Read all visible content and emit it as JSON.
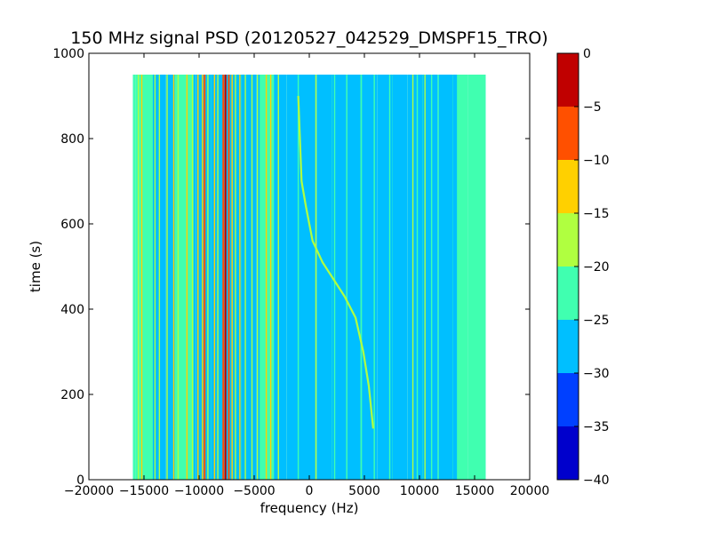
{
  "chart_data": {
    "type": "heatmap",
    "title": "150 MHz signal PSD (20120527_042529_DMSPF15_TRO)",
    "xlabel": "frequency (Hz)",
    "ylabel": "time (s)",
    "xlim": [
      -20000,
      20000
    ],
    "ylim": [
      0,
      1000
    ],
    "x_ticks": [
      -20000,
      -15000,
      -10000,
      -5000,
      0,
      5000,
      10000,
      15000,
      20000
    ],
    "x_tick_labels": [
      "−20000",
      "−15000",
      "−10000",
      "−5000",
      "0",
      "5000",
      "10000",
      "15000",
      "20000"
    ],
    "y_ticks": [
      0,
      200,
      400,
      600,
      800,
      1000
    ],
    "y_tick_labels": [
      "0",
      "200",
      "400",
      "600",
      "800",
      "1000"
    ],
    "data_extent": {
      "x": [
        -16000,
        16000
      ],
      "y": [
        0,
        950
      ]
    },
    "background_level": -27.5,
    "colorbar": {
      "levels": [
        -40,
        -35,
        -30,
        -25,
        -20,
        -15,
        -10,
        -5,
        0
      ],
      "tick_labels": [
        "−40",
        "−35",
        "−30",
        "−25",
        "−20",
        "−15",
        "−10",
        "−5",
        "0"
      ],
      "colors": [
        "#0000cc",
        "#0040ff",
        "#00bfff",
        "#40ffb0",
        "#b0ff40",
        "#ffd000",
        "#ff5000",
        "#c00000"
      ]
    },
    "bands": [
      {
        "x": [
          -16000,
          -14200
        ],
        "level": -22.5
      },
      {
        "x": [
          -12200,
          -10500
        ],
        "level": -22.5
      },
      {
        "x": [
          -4500,
          -3200
        ],
        "level": -22.5
      },
      {
        "x": [
          13400,
          16000
        ],
        "level": -22.5
      }
    ],
    "lines": [
      {
        "x": -15500,
        "level": -17.5
      },
      {
        "x": -15200,
        "level": -12.5
      },
      {
        "x": -14000,
        "level": -17.5
      },
      {
        "x": -13600,
        "level": -17.5
      },
      {
        "x": -12900,
        "level": -17.5
      },
      {
        "x": -12300,
        "level": -12.5
      },
      {
        "x": -11900,
        "level": -17.5
      },
      {
        "x": -11100,
        "level": -12.5
      },
      {
        "x": -10600,
        "level": -17.5
      },
      {
        "x": -10100,
        "level": -12.5
      },
      {
        "x": -9700,
        "level": -12.5
      },
      {
        "x": -9500,
        "level": -7.5
      },
      {
        "x": -9200,
        "level": -17.5
      },
      {
        "x": -8600,
        "level": -12.5
      },
      {
        "x": -8300,
        "level": -17.5
      },
      {
        "x": -7800,
        "level": -7.5
      },
      {
        "x": -7600,
        "level": -2.5
      },
      {
        "x": -7300,
        "level": -7.5
      },
      {
        "x": -7000,
        "level": -12.5
      },
      {
        "x": -6700,
        "level": -17.5
      },
      {
        "x": -6300,
        "level": -12.5
      },
      {
        "x": -5800,
        "level": -17.5
      },
      {
        "x": -5200,
        "level": -17.5
      },
      {
        "x": -4700,
        "level": -17.5
      },
      {
        "x": -3900,
        "level": -12.5
      },
      {
        "x": -3500,
        "level": -12.5
      },
      {
        "x": -2800,
        "level": -17.5
      },
      {
        "x": -1000,
        "level": -22.5
      },
      {
        "x": 600,
        "level": -17.5
      },
      {
        "x": 2300,
        "level": -22.5
      },
      {
        "x": 3400,
        "level": -22.5
      },
      {
        "x": 4700,
        "level": -22.5
      },
      {
        "x": 5900,
        "level": -22.5
      },
      {
        "x": 7300,
        "level": -22.5
      },
      {
        "x": 9400,
        "level": -17.5
      },
      {
        "x": 9800,
        "level": -22.5
      },
      {
        "x": 10500,
        "level": -17.5
      },
      {
        "x": 11100,
        "level": -22.5
      },
      {
        "x": 11700,
        "level": -22.5
      }
    ],
    "chirp": {
      "level": -17.5,
      "points": [
        {
          "x": -1000,
          "y": 900
        },
        {
          "x": -700,
          "y": 700
        },
        {
          "x": -300,
          "y": 640
        },
        {
          "x": 300,
          "y": 560
        },
        {
          "x": 1200,
          "y": 510
        },
        {
          "x": 2200,
          "y": 470
        },
        {
          "x": 3200,
          "y": 430
        },
        {
          "x": 4200,
          "y": 380
        },
        {
          "x": 4900,
          "y": 300
        },
        {
          "x": 5400,
          "y": 220
        },
        {
          "x": 5800,
          "y": 120
        }
      ]
    }
  }
}
